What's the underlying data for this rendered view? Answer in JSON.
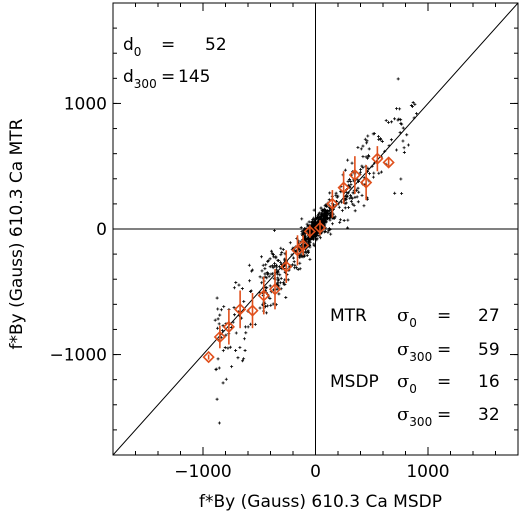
{
  "chart_data": {
    "type": "scatter",
    "title": "",
    "xlabel": "f*By (Gauss)   610.3 Ca MSDP",
    "ylabel": "f*By (Gauss)   610.3 Ca MTR",
    "xlim": [
      -1800,
      1800
    ],
    "ylim": [
      -1800,
      1800
    ],
    "xticks": [
      {
        "value": -1000,
        "label": "−1000"
      },
      {
        "value": 0,
        "label": "0"
      },
      {
        "value": 1000,
        "label": "1000"
      }
    ],
    "yticks": [
      {
        "value": -1000,
        "label": "−1000"
      },
      {
        "value": 0,
        "label": "0"
      },
      {
        "value": 1000,
        "label": "1000"
      }
    ],
    "identity_line": true,
    "zero_lines": true,
    "colors": {
      "points": "#000000",
      "binned": "#e0501c",
      "axes": "#000000"
    },
    "annotations": {
      "d0": {
        "sym": "d",
        "sub": "0",
        "eq": "=",
        "value": "52"
      },
      "d300": {
        "sym": "d",
        "sub": "300",
        "eq": "=",
        "value": "145"
      },
      "mtr_label": "MTR",
      "msdp_label": "MSDP",
      "mtr_sigma0": {
        "sym": "σ",
        "sub": "0",
        "eq": "=",
        "value": "27"
      },
      "mtr_sigma300": {
        "sym": "σ",
        "sub": "300",
        "eq": "=",
        "value": "59"
      },
      "msdp_sigma0": {
        "sym": "σ",
        "sub": "0",
        "eq": "=",
        "value": "16"
      },
      "msdp_sigma300": {
        "sym": "σ",
        "sub": "300",
        "eq": "=",
        "value": "32"
      }
    },
    "series": [
      {
        "marker": "diamond",
        "points": [
          {
            "x": -950,
            "y": -1020,
            "err": 20
          },
          {
            "x": -850,
            "y": -860,
            "err": 90
          },
          {
            "x": -770,
            "y": -780,
            "err": 140
          },
          {
            "x": -670,
            "y": -640,
            "err": 150
          },
          {
            "x": -560,
            "y": -650,
            "err": 140
          },
          {
            "x": -460,
            "y": -530,
            "err": 150
          },
          {
            "x": -360,
            "y": -480,
            "err": 160
          },
          {
            "x": -260,
            "y": -300,
            "err": 130
          },
          {
            "x": -160,
            "y": -170,
            "err": 120
          },
          {
            "x": -110,
            "y": -130,
            "err": 80
          },
          {
            "x": -50,
            "y": -20,
            "err": 50
          },
          {
            "x": 40,
            "y": 10,
            "err": 60
          },
          {
            "x": 150,
            "y": 200,
            "err": 110
          },
          {
            "x": 250,
            "y": 330,
            "err": 130
          },
          {
            "x": 350,
            "y": 430,
            "err": 150
          },
          {
            "x": 450,
            "y": 370,
            "err": 140
          },
          {
            "x": 550,
            "y": 560,
            "err": 100
          },
          {
            "x": 650,
            "y": 530,
            "err": 40
          }
        ]
      }
    ]
  }
}
